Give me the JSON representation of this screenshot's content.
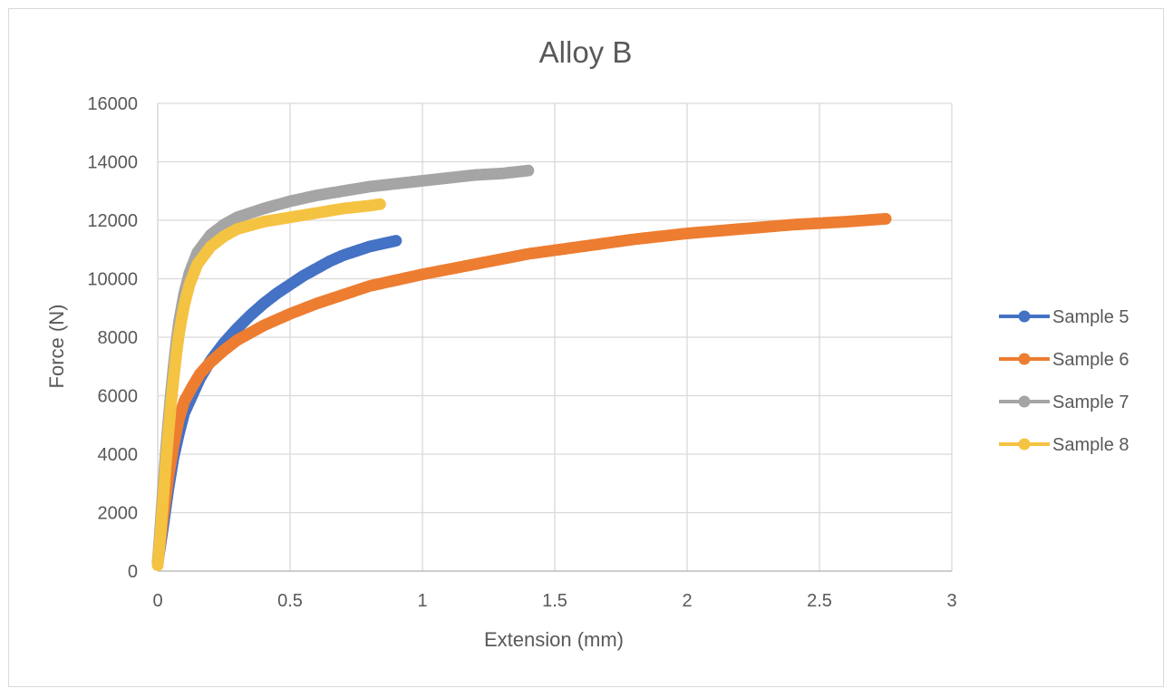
{
  "chart_data": {
    "type": "scatter",
    "title": "Alloy B",
    "xlabel": "Extension (mm)",
    "ylabel": "Force (N)",
    "xlim": [
      0,
      3
    ],
    "ylim": [
      0,
      16000
    ],
    "x_ticks": [
      "0",
      "0.5",
      "1",
      "1.5",
      "2",
      "2.5",
      "3"
    ],
    "y_ticks": [
      "0",
      "2000",
      "4000",
      "6000",
      "8000",
      "10000",
      "12000",
      "14000",
      "16000"
    ],
    "grid": true,
    "legend_position": "right",
    "series": [
      {
        "name": "Sample 5",
        "color": "#4472c4",
        "points": [
          [
            0.0,
            300
          ],
          [
            0.02,
            1500
          ],
          [
            0.04,
            2800
          ],
          [
            0.06,
            3900
          ],
          [
            0.08,
            4700
          ],
          [
            0.1,
            5400
          ],
          [
            0.13,
            6000
          ],
          [
            0.16,
            6600
          ],
          [
            0.2,
            7200
          ],
          [
            0.25,
            7800
          ],
          [
            0.3,
            8300
          ],
          [
            0.35,
            8750
          ],
          [
            0.4,
            9150
          ],
          [
            0.45,
            9500
          ],
          [
            0.5,
            9800
          ],
          [
            0.55,
            10100
          ],
          [
            0.6,
            10350
          ],
          [
            0.65,
            10600
          ],
          [
            0.7,
            10800
          ],
          [
            0.75,
            10950
          ],
          [
            0.8,
            11100
          ],
          [
            0.85,
            11200
          ],
          [
            0.9,
            11300
          ]
        ]
      },
      {
        "name": "Sample 6",
        "color": "#ed7d31",
        "points": [
          [
            0.0,
            300
          ],
          [
            0.02,
            1800
          ],
          [
            0.04,
            3200
          ],
          [
            0.06,
            4300
          ],
          [
            0.08,
            5200
          ],
          [
            0.1,
            5800
          ],
          [
            0.13,
            6300
          ],
          [
            0.16,
            6750
          ],
          [
            0.2,
            7150
          ],
          [
            0.25,
            7550
          ],
          [
            0.3,
            7900
          ],
          [
            0.4,
            8400
          ],
          [
            0.5,
            8800
          ],
          [
            0.6,
            9150
          ],
          [
            0.7,
            9450
          ],
          [
            0.8,
            9750
          ],
          [
            0.9,
            9950
          ],
          [
            1.0,
            10150
          ],
          [
            1.2,
            10500
          ],
          [
            1.4,
            10850
          ],
          [
            1.6,
            11100
          ],
          [
            1.8,
            11350
          ],
          [
            2.0,
            11550
          ],
          [
            2.2,
            11700
          ],
          [
            2.4,
            11850
          ],
          [
            2.6,
            11950
          ],
          [
            2.75,
            12050
          ]
        ]
      },
      {
        "name": "Sample 7",
        "color": "#a5a5a5",
        "points": [
          [
            0.0,
            300
          ],
          [
            0.01,
            1500
          ],
          [
            0.02,
            2800
          ],
          [
            0.03,
            4000
          ],
          [
            0.04,
            5100
          ],
          [
            0.05,
            6100
          ],
          [
            0.06,
            7000
          ],
          [
            0.07,
            7800
          ],
          [
            0.08,
            8500
          ],
          [
            0.1,
            9500
          ],
          [
            0.12,
            10200
          ],
          [
            0.15,
            10900
          ],
          [
            0.2,
            11500
          ],
          [
            0.25,
            11850
          ],
          [
            0.3,
            12100
          ],
          [
            0.4,
            12400
          ],
          [
            0.5,
            12650
          ],
          [
            0.6,
            12850
          ],
          [
            0.7,
            13000
          ],
          [
            0.8,
            13150
          ],
          [
            0.9,
            13250
          ],
          [
            1.0,
            13350
          ],
          [
            1.1,
            13450
          ],
          [
            1.2,
            13550
          ],
          [
            1.3,
            13600
          ],
          [
            1.4,
            13700
          ]
        ]
      },
      {
        "name": "Sample 8",
        "color": "#f5c342",
        "points": [
          [
            0.0,
            200
          ],
          [
            0.01,
            1200
          ],
          [
            0.02,
            2400
          ],
          [
            0.03,
            3600
          ],
          [
            0.04,
            4700
          ],
          [
            0.05,
            5700
          ],
          [
            0.06,
            6600
          ],
          [
            0.07,
            7400
          ],
          [
            0.08,
            8100
          ],
          [
            0.1,
            9100
          ],
          [
            0.12,
            9800
          ],
          [
            0.15,
            10500
          ],
          [
            0.2,
            11100
          ],
          [
            0.25,
            11450
          ],
          [
            0.3,
            11700
          ],
          [
            0.4,
            11950
          ],
          [
            0.5,
            12100
          ],
          [
            0.6,
            12250
          ],
          [
            0.7,
            12400
          ],
          [
            0.8,
            12500
          ],
          [
            0.84,
            12550
          ]
        ]
      }
    ]
  }
}
